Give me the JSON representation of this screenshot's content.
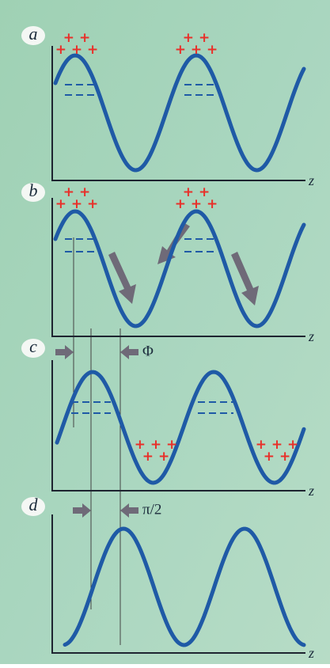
{
  "panels": [
    {
      "label": "a",
      "axis_label": "z",
      "charges": [
        [
          "+ +",
          "+ + +"
        ],
        [
          "+ +",
          "+ + +"
        ]
      ]
    },
    {
      "label": "b",
      "axis_label": "z",
      "charges": [
        [
          "+ +",
          "+ + +"
        ],
        [
          "+ +",
          "+ + +"
        ]
      ]
    },
    {
      "label": "c",
      "axis_label": "z",
      "charges": [
        [
          "+ + +",
          "+ +"
        ],
        [
          "+ + +",
          "+ +"
        ]
      ]
    },
    {
      "label": "d",
      "axis_label": "z"
    }
  ],
  "annotations": {
    "phase": "Φ",
    "quarter_period": "π/2"
  }
}
